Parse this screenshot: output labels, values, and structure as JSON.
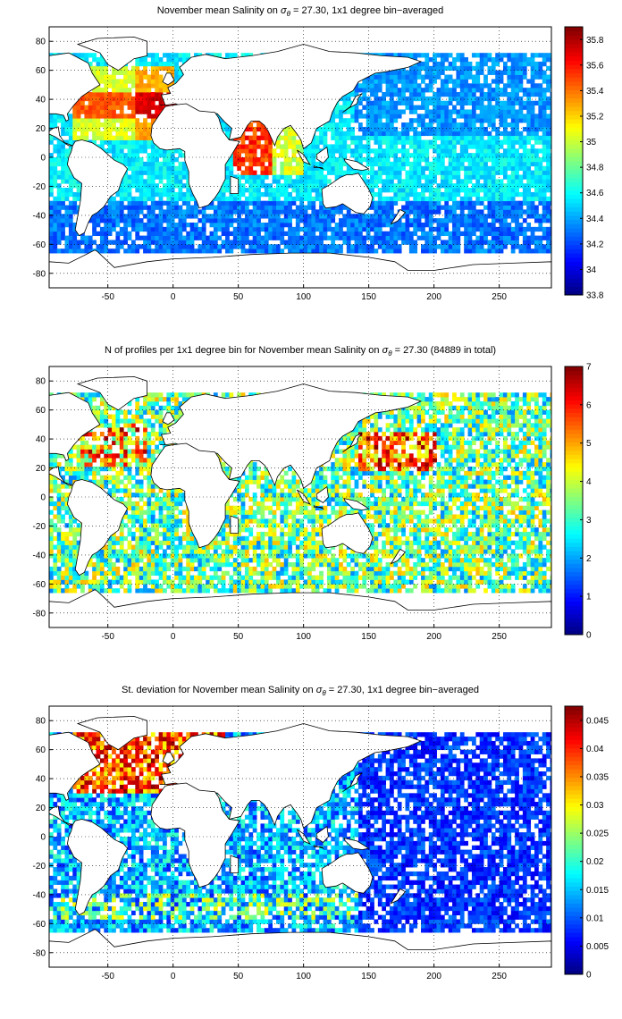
{
  "chart_data": [
    {
      "type": "heatmap",
      "title_prefix": "November mean Salinity on ",
      "title_sigma": "σ",
      "title_sub": "θ",
      "title_suffix": " = 27.30, 1x1 degree bin−averaged",
      "xlim": [
        -95,
        290
      ],
      "ylim": [
        -90,
        90
      ],
      "x_ticks": [
        -50,
        0,
        50,
        100,
        150,
        200,
        250
      ],
      "y_ticks": [
        80,
        60,
        40,
        20,
        0,
        -20,
        -40,
        -60,
        -80
      ],
      "colorbar": {
        "min": 33.8,
        "max": 35.9,
        "ticks": [
          "35.8",
          "35.6",
          "35.4",
          "35.2",
          "35",
          "34.8",
          "34.6",
          "34.4",
          "34.2",
          "34",
          "33.8"
        ],
        "tick_values": [
          35.8,
          35.6,
          35.4,
          35.2,
          35.0,
          34.8,
          34.6,
          34.4,
          34.2,
          34.0,
          33.8
        ]
      },
      "colormap": "jet",
      "grid": true
    },
    {
      "type": "heatmap",
      "title_prefix": "N of profiles per 1x1 degree bin for November mean Salinity on ",
      "title_sigma": "σ",
      "title_sub": "θ",
      "title_suffix": " = 27.30 (84889 in total)",
      "xlim": [
        -95,
        290
      ],
      "ylim": [
        -90,
        90
      ],
      "x_ticks": [
        -50,
        0,
        50,
        100,
        150,
        200,
        250
      ],
      "y_ticks": [
        80,
        60,
        40,
        20,
        0,
        -20,
        -40,
        -60,
        -80
      ],
      "colorbar": {
        "min": 0,
        "max": 7,
        "ticks": [
          "7",
          "6",
          "5",
          "4",
          "3",
          "2",
          "1",
          "0"
        ],
        "tick_values": [
          7,
          6,
          5,
          4,
          3,
          2,
          1,
          0
        ]
      },
      "colormap": "jet",
      "grid": true
    },
    {
      "type": "heatmap",
      "title_prefix": "St. deviation for November mean Salinity on ",
      "title_sigma": "σ",
      "title_sub": "θ",
      "title_suffix": " = 27.30, 1x1 degree bin−averaged",
      "xlim": [
        -95,
        290
      ],
      "ylim": [
        -90,
        90
      ],
      "x_ticks": [
        -50,
        0,
        50,
        100,
        150,
        200,
        250
      ],
      "y_ticks": [
        80,
        60,
        40,
        20,
        0,
        -20,
        -40,
        -60,
        -80
      ],
      "colorbar": {
        "min": 0,
        "max": 0.0475,
        "ticks": [
          "0.045",
          "0.04",
          "0.035",
          "0.03",
          "0.025",
          "0.02",
          "0.015",
          "0.01",
          "0.005",
          "0"
        ],
        "tick_values": [
          0.045,
          0.04,
          0.035,
          0.03,
          0.025,
          0.02,
          0.015,
          0.01,
          0.005,
          0
        ]
      },
      "colormap": "jet",
      "grid": true
    }
  ]
}
